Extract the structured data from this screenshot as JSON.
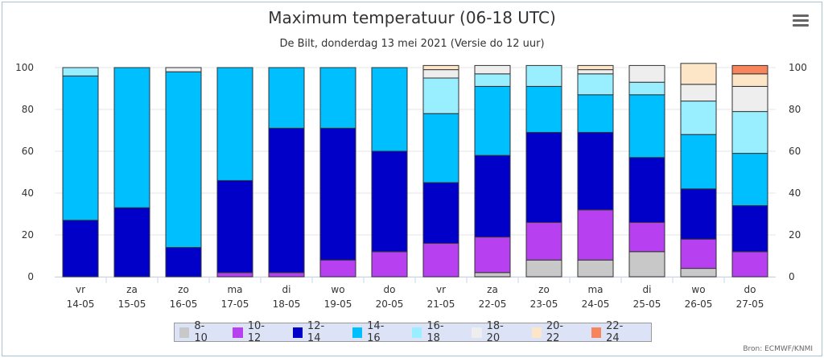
{
  "title": "Maximum temperatuur (06-18 UTC)",
  "subtitle": "De Bilt, donderdag 13 mei 2021 (Versie do 12 uur)",
  "credits": "Bron: ECMWF/KNMI",
  "menu_icon": "hamburger-menu-icon",
  "chart_data": {
    "type": "bar",
    "stacked": true,
    "title": "Maximum temperatuur (06-18 UTC)",
    "subtitle": "De Bilt, donderdag 13 mei 2021 (Versie do 12 uur)",
    "ylim": [
      0,
      100
    ],
    "yticks": [
      0,
      20,
      40,
      60,
      80,
      100
    ],
    "dual_y_axis": true,
    "grid": true,
    "legend_position": "bottom",
    "categories": [
      [
        "vr",
        "14-05"
      ],
      [
        "za",
        "15-05"
      ],
      [
        "zo",
        "16-05"
      ],
      [
        "ma",
        "17-05"
      ],
      [
        "di",
        "18-05"
      ],
      [
        "wo",
        "19-05"
      ],
      [
        "do",
        "20-05"
      ],
      [
        "vr",
        "21-05"
      ],
      [
        "za",
        "22-05"
      ],
      [
        "zo",
        "23-05"
      ],
      [
        "ma",
        "24-05"
      ],
      [
        "di",
        "25-05"
      ],
      [
        "wo",
        "26-05"
      ],
      [
        "do",
        "27-05"
      ]
    ],
    "series": [
      {
        "name": "8-10",
        "color": "#c8c8c8",
        "values": [
          0,
          0,
          0,
          0,
          0,
          0,
          0,
          0,
          2,
          8,
          8,
          12,
          4,
          0
        ]
      },
      {
        "name": "10-12",
        "color": "#b740f0",
        "values": [
          0,
          0,
          0,
          2,
          2,
          8,
          12,
          16,
          17,
          18,
          24,
          14,
          14,
          12
        ]
      },
      {
        "name": "12-14",
        "color": "#0000c8",
        "values": [
          27,
          33,
          14,
          44,
          69,
          63,
          48,
          29,
          39,
          43,
          37,
          31,
          24,
          22
        ]
      },
      {
        "name": "14-16",
        "color": "#00bfff",
        "values": [
          69,
          67,
          84,
          54,
          29,
          29,
          40,
          33,
          33,
          22,
          18,
          30,
          26,
          25
        ]
      },
      {
        "name": "16-18",
        "color": "#99eeff",
        "values": [
          4,
          0,
          0,
          0,
          0,
          0,
          0,
          17,
          6,
          10,
          10,
          6,
          16,
          20
        ]
      },
      {
        "name": "18-20",
        "color": "#eeeeee",
        "values": [
          0,
          0,
          2,
          0,
          0,
          0,
          0,
          4,
          4,
          0,
          2,
          8,
          8,
          12
        ]
      },
      {
        "name": "20-22",
        "color": "#fde5c8",
        "values": [
          0,
          0,
          0,
          0,
          0,
          0,
          0,
          2,
          0,
          0,
          2,
          0,
          10,
          6
        ]
      },
      {
        "name": "22-24",
        "color": "#f7845a",
        "values": [
          0,
          0,
          0,
          0,
          0,
          0,
          0,
          0,
          0,
          0,
          0,
          0,
          0,
          4
        ]
      }
    ]
  }
}
